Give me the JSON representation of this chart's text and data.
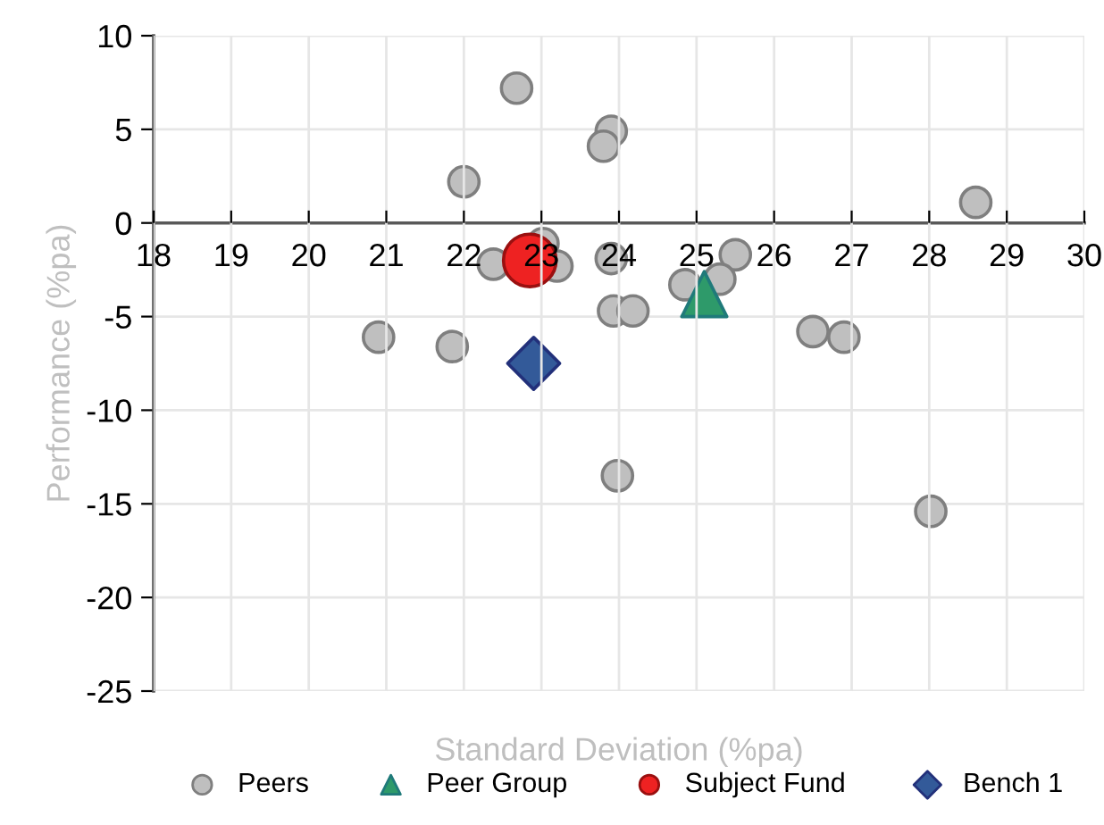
{
  "chart_data": {
    "type": "scatter",
    "xlabel": "Standard Deviation (%pa)",
    "ylabel": "Performance (%pa)",
    "xlim": [
      18,
      30
    ],
    "xticks": [
      18,
      19,
      20,
      21,
      22,
      23,
      24,
      25,
      26,
      27,
      28,
      29,
      30
    ],
    "ylim": [
      -25,
      10
    ],
    "yticks": [
      -25,
      -20,
      -15,
      -10,
      -5,
      0,
      5,
      10
    ],
    "grid": true,
    "legend": "bottom",
    "series": [
      {
        "name": "Peers",
        "color": "#bfbfbf",
        "marker": "circle",
        "x": [
          22.68,
          23.9,
          23.8,
          22.0,
          28.6,
          22.38,
          23.02,
          23.2,
          23.9,
          25.5,
          24.85,
          25.3,
          23.93,
          24.18,
          20.9,
          21.85,
          26.5,
          26.9,
          28.02,
          23.98
        ],
        "values": [
          7.2,
          4.9,
          4.1,
          2.2,
          1.1,
          -2.2,
          -1.1,
          -2.3,
          -1.9,
          -1.7,
          -3.3,
          -3.0,
          -4.7,
          -4.7,
          -6.1,
          -6.6,
          -5.8,
          -6.1,
          -15.4,
          -13.5
        ]
      },
      {
        "name": "Peer Group",
        "color": "#2e9a6a",
        "marker": "triangle",
        "x": [
          25.1
        ],
        "values": [
          -3.8
        ]
      },
      {
        "name": "Subject Fund",
        "color": "#ee2222",
        "marker": "circle",
        "x": [
          22.85
        ],
        "values": [
          -2.0
        ]
      },
      {
        "name": "Bench 1",
        "color": "#335a99",
        "marker": "diamond",
        "x": [
          22.9
        ],
        "values": [
          -7.5
        ]
      }
    ]
  }
}
